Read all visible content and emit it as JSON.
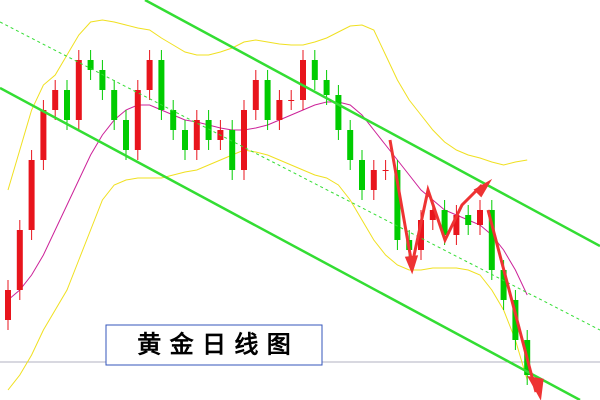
{
  "chart_data": {
    "type": "candlestick",
    "title": "黄 金 日 线 图",
    "categories": [
      null,
      null,
      null,
      null,
      null,
      null,
      null,
      null,
      null,
      null,
      null,
      null,
      null,
      null,
      null,
      null,
      null,
      null,
      null,
      null,
      null,
      null,
      null,
      null,
      null,
      null,
      null,
      null,
      null,
      null,
      null,
      null,
      null,
      null,
      null,
      null,
      null,
      null,
      null,
      null,
      null,
      null,
      null,
      null,
      null
    ],
    "open": [
      80,
      110,
      170,
      240,
      290,
      310,
      280,
      340,
      330,
      310,
      280,
      250,
      310,
      340,
      290,
      270,
      250,
      280,
      260,
      270,
      230,
      290,
      320,
      280,
      300,
      300,
      340,
      320,
      305,
      270,
      240,
      210,
      230,
      230,
      160,
      150,
      180,
      190,
      165,
      185,
      175,
      190,
      130,
      100,
      60
    ],
    "high": [
      120,
      180,
      250,
      300,
      320,
      320,
      350,
      350,
      340,
      320,
      290,
      320,
      350,
      350,
      300,
      280,
      290,
      290,
      280,
      280,
      300,
      330,
      330,
      310,
      310,
      350,
      350,
      330,
      315,
      280,
      250,
      240,
      240,
      240,
      170,
      190,
      200,
      200,
      195,
      195,
      200,
      200,
      140,
      110,
      70
    ],
    "low": [
      70,
      100,
      160,
      230,
      280,
      270,
      270,
      320,
      300,
      270,
      240,
      240,
      300,
      280,
      260,
      240,
      240,
      250,
      250,
      220,
      220,
      280,
      270,
      270,
      290,
      290,
      310,
      295,
      260,
      230,
      200,
      200,
      220,
      150,
      140,
      140,
      170,
      155,
      155,
      165,
      165,
      120,
      90,
      50,
      15
    ],
    "close": [
      110,
      170,
      240,
      290,
      310,
      280,
      340,
      330,
      310,
      280,
      250,
      310,
      340,
      290,
      270,
      250,
      280,
      260,
      270,
      230,
      290,
      320,
      280,
      300,
      300,
      340,
      320,
      305,
      270,
      240,
      210,
      230,
      230,
      160,
      150,
      180,
      190,
      165,
      185,
      175,
      190,
      130,
      100,
      60,
      25
    ],
    "up_color": "#e8141c",
    "down_color": "#00cc00",
    "series": [
      {
        "color": "#f0e020",
        "values": [
          210,
          250,
          290,
          315,
          325,
          345,
          365,
          378,
          380,
          378,
          375,
          372,
          370,
          362,
          355,
          348,
          345,
          345,
          348,
          352,
          358,
          360,
          358,
          356,
          355,
          355,
          358,
          362,
          368,
          374,
          375,
          370,
          345,
          320,
          300,
          285,
          270,
          258,
          250,
          245,
          242,
          238,
          235,
          238,
          240
        ]
      },
      {
        "color": "#f0e020",
        "values": [
          10,
          25,
          45,
          70,
          90,
          110,
          140,
          170,
          200,
          215,
          220,
          222,
          222,
          222,
          225,
          228,
          230,
          235,
          240,
          245,
          250,
          248,
          245,
          240,
          235,
          230,
          225,
          222,
          215,
          200,
          180,
          160,
          145,
          135,
          130,
          130,
          132,
          132,
          132,
          130,
          125,
          110,
          90,
          60,
          20
        ]
      },
      {
        "color": "#cc2299",
        "values": [
          100,
          110,
          125,
          145,
          170,
          195,
          220,
          245,
          265,
          280,
          290,
          295,
          295,
          290,
          285,
          280,
          278,
          275,
          272,
          270,
          270,
          272,
          275,
          280,
          285,
          290,
          295,
          298,
          298,
          295,
          285,
          270,
          255,
          240,
          225,
          210,
          200,
          190,
          185,
          180,
          175,
          165,
          150,
          130,
          105
        ]
      }
    ],
    "ylim": [
      0,
      400
    ]
  }
}
